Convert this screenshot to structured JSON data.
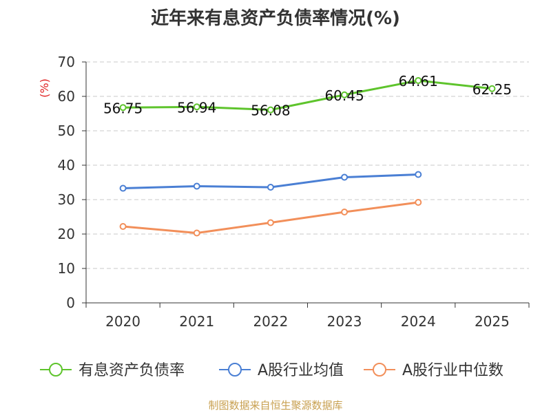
{
  "chart_data": {
    "type": "line",
    "title": "近年来有息资产负债率情况(%)",
    "ylabel": "(%)",
    "xlabel": "",
    "ylim": [
      0,
      70
    ],
    "yticks": [
      0,
      10,
      20,
      30,
      40,
      50,
      60,
      70
    ],
    "grid": true,
    "legend_position": "bottom",
    "categories": [
      "2020",
      "2021",
      "2022",
      "2023",
      "2024",
      "2025"
    ],
    "series": [
      {
        "name": "有息资产负债率",
        "color": "#5ec42c",
        "values": [
          56.75,
          56.94,
          56.08,
          60.45,
          64.61,
          62.25
        ],
        "labels": [
          "56.75",
          "56.94",
          "56.08",
          "60.45",
          "64.61",
          "62.25"
        ],
        "show_labels": true
      },
      {
        "name": "A股行业均值",
        "color": "#4a7fd4",
        "values": [
          33.3,
          33.9,
          33.6,
          36.5,
          37.3,
          null
        ],
        "show_labels": false
      },
      {
        "name": "A股行业中位数",
        "color": "#f28f5a",
        "values": [
          22.2,
          20.3,
          23.3,
          26.4,
          29.2,
          null
        ],
        "show_labels": false
      }
    ]
  },
  "source": "制图数据来自恒生聚源数据库"
}
